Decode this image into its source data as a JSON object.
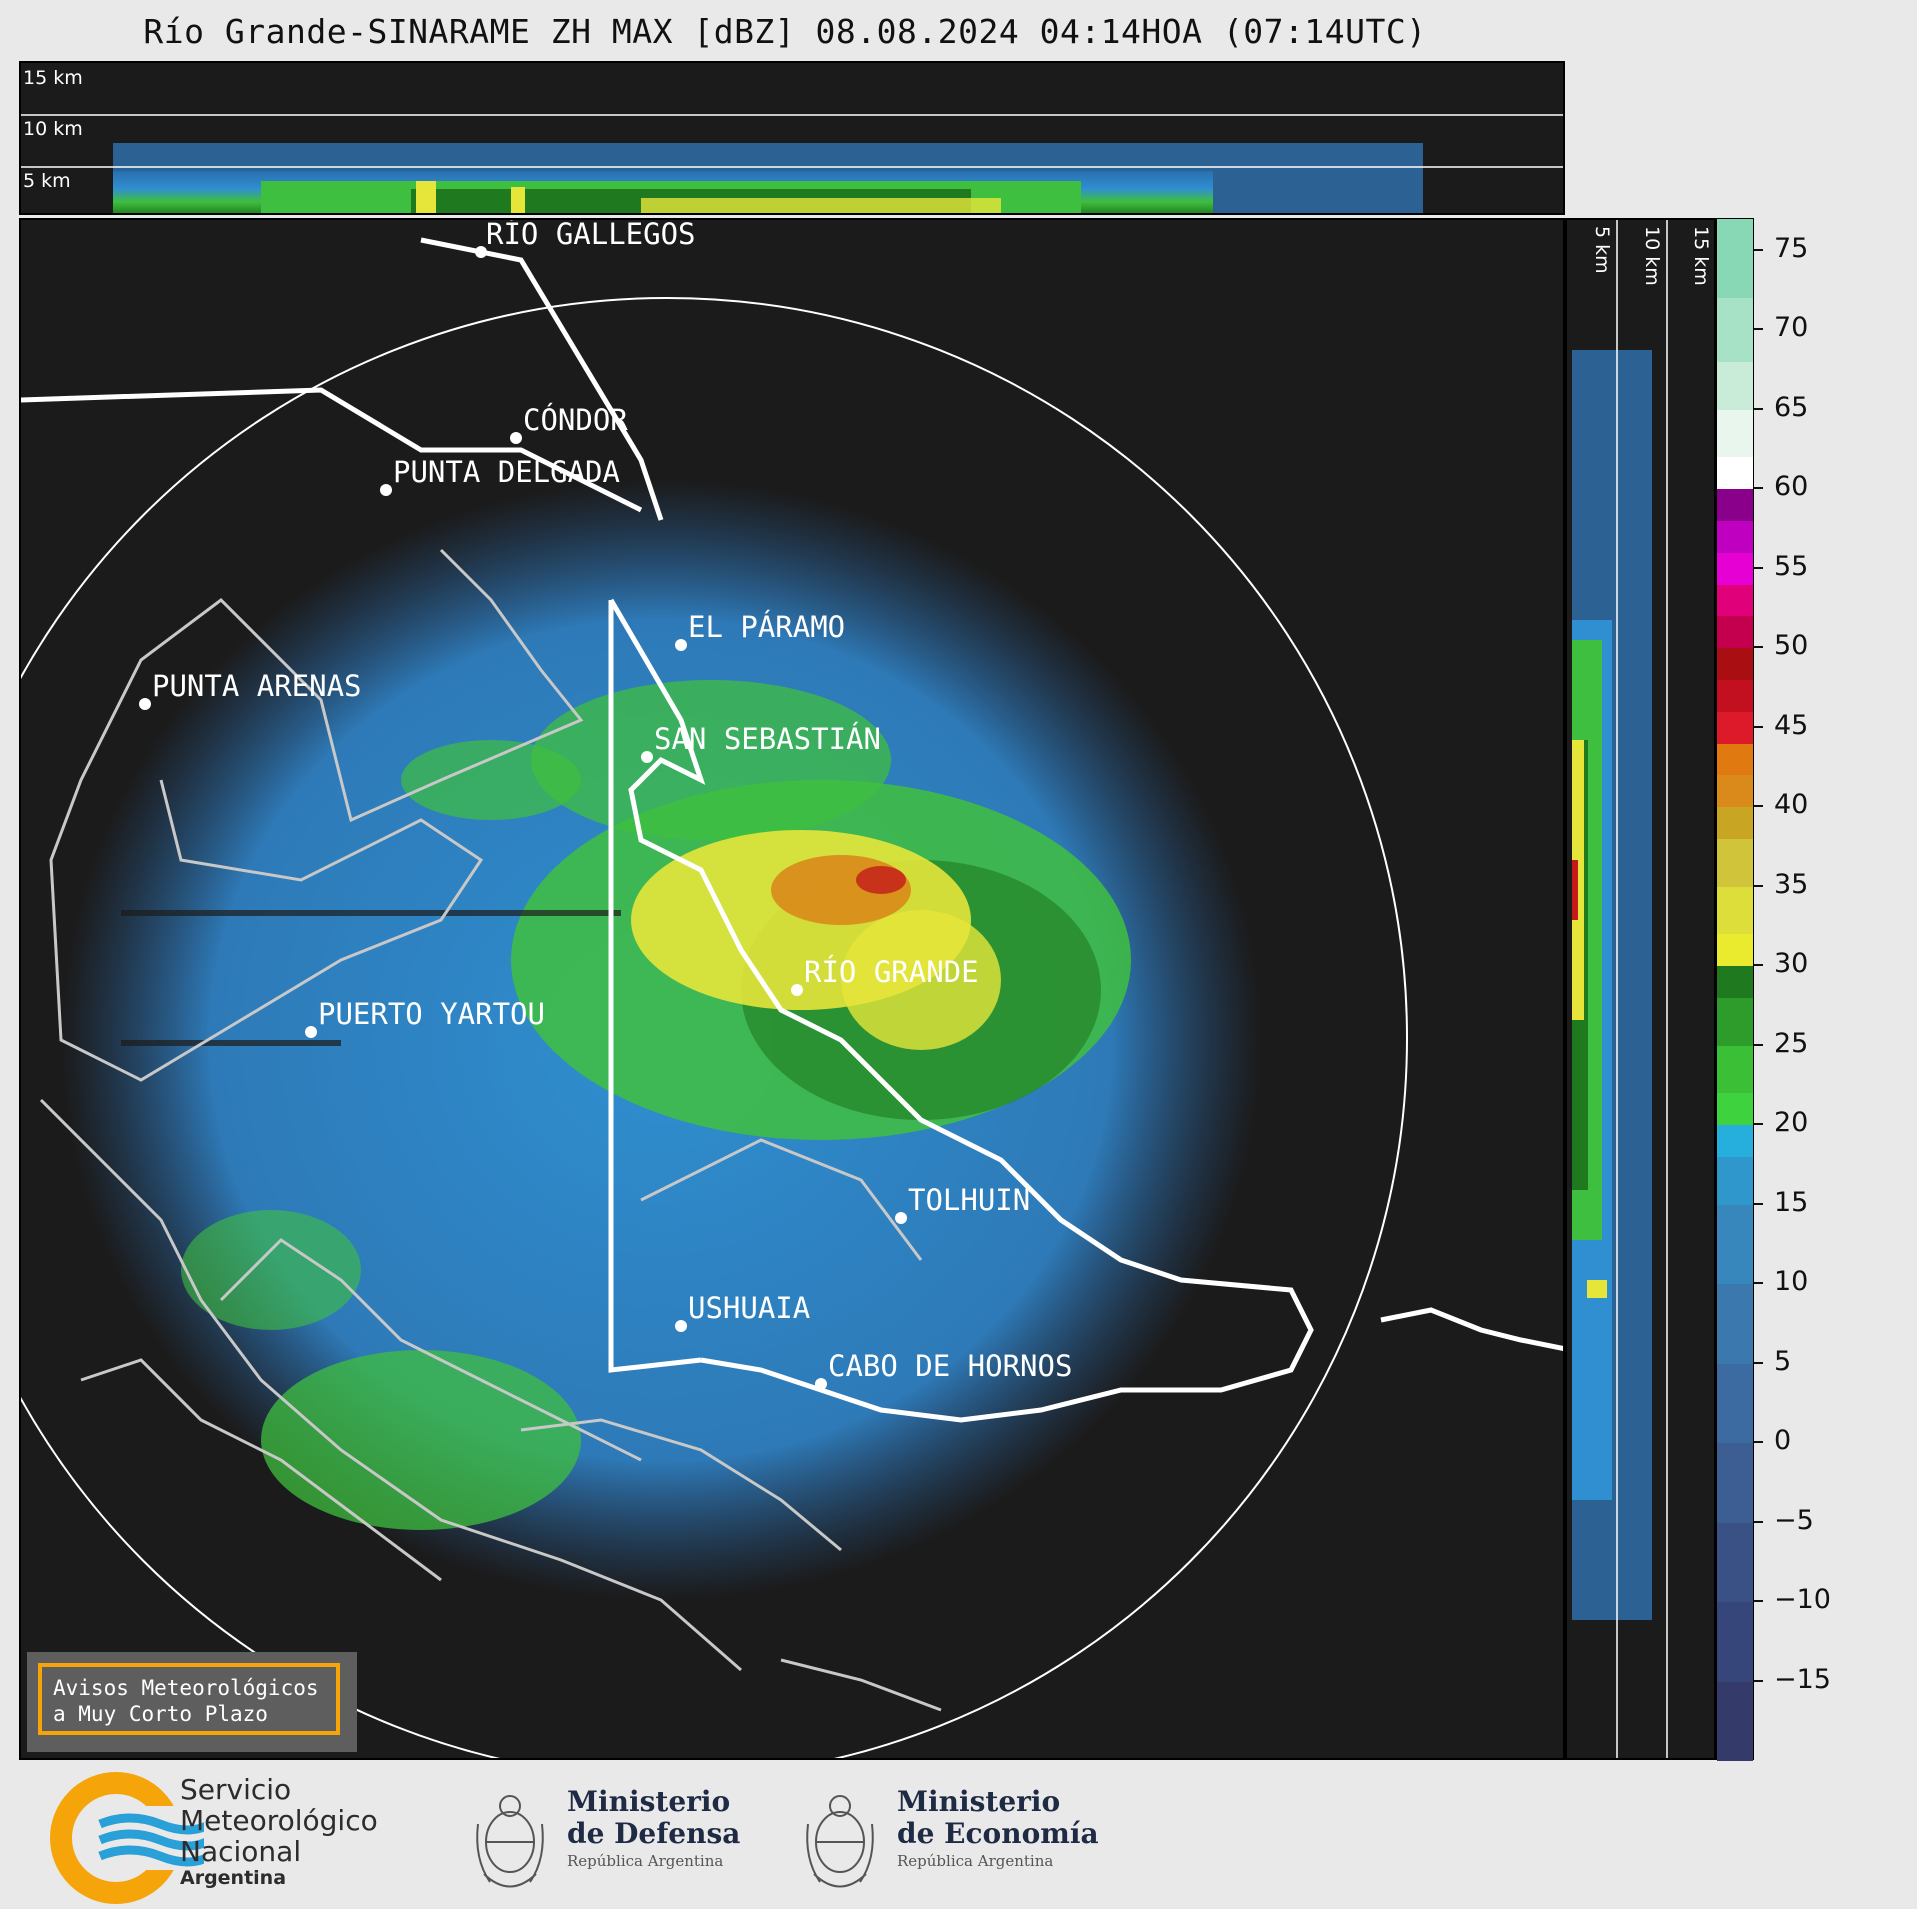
{
  "title": "Río Grande-SINARAME ZH MAX [dBZ] 08.08.2024 04:14HOA (07:14UTC)",
  "top_panel": {
    "altitude_labels": [
      "15 km",
      "10 km",
      "5 km"
    ]
  },
  "right_panel": {
    "altitude_labels": [
      "5 km",
      "10 km",
      "15 km"
    ]
  },
  "cities": [
    {
      "id": "rio-gallegos",
      "name": "RÍO GALLEGOS"
    },
    {
      "id": "condor",
      "name": "CÓNDOR"
    },
    {
      "id": "punta-delgada",
      "name": "PUNTA DELGADA"
    },
    {
      "id": "el-paramo",
      "name": "EL PÁRAMO"
    },
    {
      "id": "punta-arenas",
      "name": "PUNTA ARENAS"
    },
    {
      "id": "san-sebastian",
      "name": "SAN SEBASTIÁN"
    },
    {
      "id": "rio-grande",
      "name": "RÍO GRANDE"
    },
    {
      "id": "puerto-yartou",
      "name": "PUERTO YARTOU"
    },
    {
      "id": "tolhuin",
      "name": "TOLHUIN"
    },
    {
      "id": "ushuaia",
      "name": "USHUAIA"
    },
    {
      "id": "cabo-de-hornos",
      "name": "CABO DE HORNOS"
    }
  ],
  "colorbar": {
    "unit": "dBZ",
    "ticks": [
      "75",
      "70",
      "65",
      "60",
      "55",
      "50",
      "45",
      "40",
      "35",
      "30",
      "25",
      "20",
      "15",
      "10",
      "5",
      "0",
      "−5",
      "−10",
      "−15"
    ],
    "colors": {
      "clear": "#1b1b1b",
      "blue": "#2f8fd0",
      "green": "#3fbf3f",
      "dark_green": "#1f7a1f",
      "yellow": "#e6e63a",
      "orange": "#d98a1a",
      "red": "#c41a1a",
      "magenta": "#d400d4"
    }
  },
  "warning": {
    "line1": "Avisos Meteorológicos",
    "line2": "a Muy Corto Plazo"
  },
  "logos": {
    "smn_line1": "Servicio",
    "smn_line2": "Meteorológico",
    "smn_line3": "Nacional",
    "smn_line4": "Argentina",
    "defensa_line1": "Ministerio",
    "defensa_line2": "de Defensa",
    "defensa_line3": "República Argentina",
    "economia_line1": "Ministerio",
    "economia_line2": "de Economía",
    "economia_line3": "República Argentina"
  }
}
